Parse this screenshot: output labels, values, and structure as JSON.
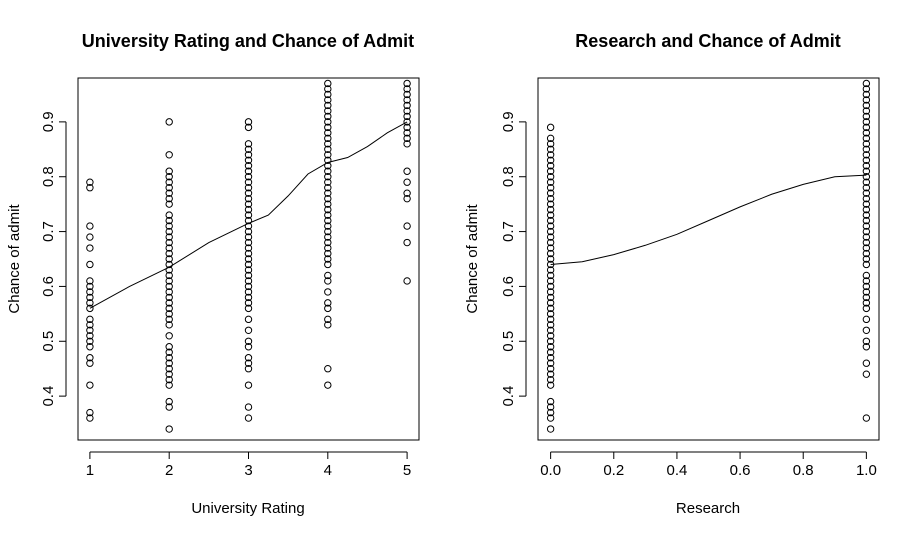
{
  "chart_data": [
    {
      "type": "scatter",
      "title": "University Rating and Chance of Admit",
      "xlabel": "University Rating",
      "ylabel": "Chance of admit",
      "xlim": [
        0.85,
        5.15
      ],
      "ylim": [
        0.32,
        0.98
      ],
      "xticks": [
        1,
        2,
        3,
        4,
        5
      ],
      "xtick_labels": [
        "1",
        "2",
        "3",
        "4",
        "5"
      ],
      "yticks": [
        0.4,
        0.5,
        0.6,
        0.7,
        0.8,
        0.9
      ],
      "ytick_labels": [
        "0.4",
        "0.5",
        "0.6",
        "0.7",
        "0.8",
        "0.9"
      ],
      "grid": false,
      "series": [
        {
          "groups": [
            {
              "x": 1,
              "y": [
                0.36,
                0.37,
                0.42,
                0.46,
                0.47,
                0.49,
                0.5,
                0.51,
                0.52,
                0.53,
                0.54,
                0.56,
                0.57,
                0.58,
                0.59,
                0.6,
                0.61,
                0.64,
                0.67,
                0.69,
                0.71,
                0.78,
                0.79
              ]
            },
            {
              "x": 2,
              "y": [
                0.34,
                0.38,
                0.39,
                0.42,
                0.43,
                0.44,
                0.45,
                0.46,
                0.47,
                0.48,
                0.49,
                0.51,
                0.53,
                0.54,
                0.55,
                0.56,
                0.57,
                0.58,
                0.59,
                0.6,
                0.61,
                0.62,
                0.63,
                0.64,
                0.65,
                0.66,
                0.67,
                0.68,
                0.69,
                0.7,
                0.71,
                0.72,
                0.73,
                0.75,
                0.76,
                0.77,
                0.78,
                0.79,
                0.8,
                0.81,
                0.84,
                0.9
              ]
            },
            {
              "x": 3,
              "y": [
                0.36,
                0.38,
                0.42,
                0.45,
                0.46,
                0.47,
                0.49,
                0.5,
                0.52,
                0.54,
                0.56,
                0.57,
                0.58,
                0.59,
                0.6,
                0.61,
                0.62,
                0.63,
                0.64,
                0.65,
                0.66,
                0.67,
                0.68,
                0.69,
                0.7,
                0.71,
                0.72,
                0.73,
                0.74,
                0.75,
                0.76,
                0.77,
                0.78,
                0.79,
                0.8,
                0.81,
                0.82,
                0.83,
                0.84,
                0.85,
                0.86,
                0.89,
                0.9
              ]
            },
            {
              "x": 4,
              "y": [
                0.42,
                0.45,
                0.53,
                0.54,
                0.56,
                0.57,
                0.59,
                0.61,
                0.62,
                0.64,
                0.65,
                0.66,
                0.67,
                0.68,
                0.69,
                0.7,
                0.71,
                0.72,
                0.73,
                0.74,
                0.75,
                0.76,
                0.77,
                0.78,
                0.79,
                0.8,
                0.81,
                0.82,
                0.83,
                0.84,
                0.85,
                0.86,
                0.87,
                0.88,
                0.89,
                0.9,
                0.91,
                0.92,
                0.93,
                0.94,
                0.95,
                0.96,
                0.97
              ]
            },
            {
              "x": 5,
              "y": [
                0.61,
                0.68,
                0.71,
                0.76,
                0.77,
                0.79,
                0.81,
                0.86,
                0.87,
                0.88,
                0.89,
                0.9,
                0.91,
                0.92,
                0.93,
                0.94,
                0.95,
                0.96,
                0.97
              ]
            }
          ]
        }
      ],
      "smooth_line": {
        "x": [
          1,
          1.5,
          2,
          2.5,
          3,
          3.25,
          3.5,
          3.75,
          4,
          4.25,
          4.5,
          4.75,
          5
        ],
        "y": [
          0.56,
          0.6,
          0.635,
          0.68,
          0.715,
          0.73,
          0.765,
          0.805,
          0.826,
          0.835,
          0.855,
          0.88,
          0.9
        ]
      }
    },
    {
      "type": "scatter",
      "title": "Research and Chance of Admit",
      "xlabel": "Research",
      "ylabel": "Chance of admit",
      "xlim": [
        -0.04,
        1.04
      ],
      "ylim": [
        0.32,
        0.98
      ],
      "xticks": [
        0,
        0.2,
        0.4,
        0.6,
        0.8,
        1
      ],
      "xtick_labels": [
        "0.0",
        "0.2",
        "0.4",
        "0.6",
        "0.8",
        "1.0"
      ],
      "yticks": [
        0.4,
        0.5,
        0.6,
        0.7,
        0.8,
        0.9
      ],
      "ytick_labels": [
        "0.4",
        "0.5",
        "0.6",
        "0.7",
        "0.8",
        "0.9"
      ],
      "grid": false,
      "series": [
        {
          "groups": [
            {
              "x": 0,
              "y": [
                0.34,
                0.36,
                0.37,
                0.38,
                0.39,
                0.42,
                0.43,
                0.44,
                0.45,
                0.46,
                0.47,
                0.48,
                0.49,
                0.5,
                0.51,
                0.52,
                0.53,
                0.54,
                0.55,
                0.56,
                0.57,
                0.58,
                0.59,
                0.6,
                0.61,
                0.62,
                0.63,
                0.64,
                0.65,
                0.66,
                0.67,
                0.68,
                0.69,
                0.7,
                0.71,
                0.72,
                0.73,
                0.74,
                0.75,
                0.76,
                0.77,
                0.78,
                0.79,
                0.8,
                0.81,
                0.82,
                0.83,
                0.84,
                0.85,
                0.86,
                0.87,
                0.89
              ]
            },
            {
              "x": 1,
              "y": [
                0.36,
                0.44,
                0.46,
                0.49,
                0.5,
                0.52,
                0.54,
                0.56,
                0.57,
                0.58,
                0.59,
                0.6,
                0.61,
                0.62,
                0.64,
                0.65,
                0.66,
                0.67,
                0.68,
                0.69,
                0.7,
                0.71,
                0.72,
                0.73,
                0.74,
                0.75,
                0.76,
                0.77,
                0.78,
                0.79,
                0.8,
                0.81,
                0.82,
                0.83,
                0.84,
                0.85,
                0.86,
                0.87,
                0.88,
                0.89,
                0.9,
                0.91,
                0.92,
                0.93,
                0.94,
                0.95,
                0.96,
                0.97
              ]
            }
          ]
        }
      ],
      "smooth_line": {
        "x": [
          0,
          0.1,
          0.2,
          0.3,
          0.4,
          0.5,
          0.6,
          0.7,
          0.8,
          0.9,
          1
        ],
        "y": [
          0.64,
          0.645,
          0.658,
          0.675,
          0.695,
          0.72,
          0.745,
          0.768,
          0.786,
          0.8,
          0.803
        ]
      }
    }
  ]
}
